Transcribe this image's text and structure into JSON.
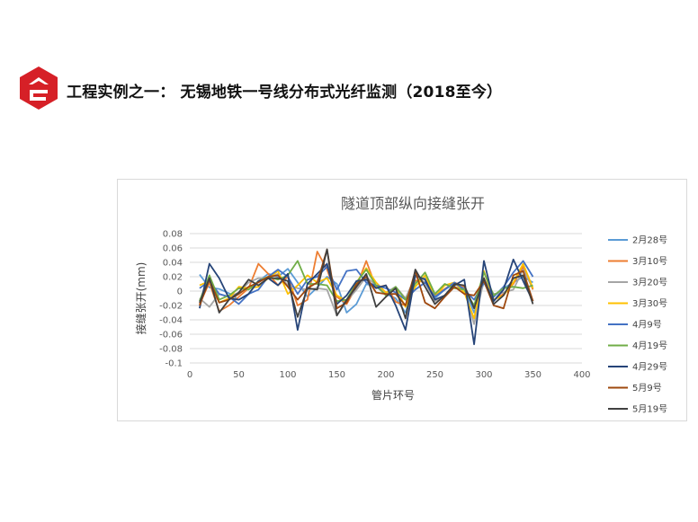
{
  "header": {
    "title": "工程实例之一： 无锡地铁一号线分布式光纤监测（2018至今）",
    "logo": "company-logo",
    "logo_color": "#d62027"
  },
  "chart_data": {
    "type": "line",
    "title": "隧道顶部纵向接缝张开",
    "xlabel": "管片环号",
    "ylabel": "接缝张开(mm)",
    "xlim": [
      0,
      400
    ],
    "ylim": [
      -0.1,
      0.08
    ],
    "xticks": [
      "0",
      "50",
      "100",
      "150",
      "200",
      "250",
      "300",
      "350",
      "400"
    ],
    "yticks": [
      "0.08",
      "0.06",
      "0.04",
      "0.02",
      "0",
      "-0.02",
      "-0.04",
      "-0.06",
      "-0.08",
      "-0.1"
    ],
    "grid": "horizontal",
    "legend_position": "right",
    "x": [
      10,
      20,
      30,
      40,
      50,
      60,
      70,
      80,
      90,
      100,
      110,
      120,
      130,
      140,
      150,
      160,
      170,
      180,
      190,
      200,
      210,
      220,
      230,
      240,
      250,
      260,
      270,
      280,
      290,
      300,
      310,
      320,
      330,
      340,
      350
    ],
    "series": [
      {
        "name": "2月28号",
        "color": "#5b9bd5",
        "values": [
          0.023,
          0.005,
          0.003,
          -0.003,
          -0.012,
          -0.004,
          0.014,
          0.024,
          0.02,
          0.031,
          0.012,
          -0.008,
          0.005,
          0.02,
          0.01,
          -0.03,
          -0.018,
          0.01,
          0.006,
          -0.004,
          -0.01,
          -0.03,
          0.012,
          0.018,
          -0.01,
          0.002,
          0.01,
          0.004,
          -0.03,
          0.012,
          -0.014,
          0.004,
          0.012,
          0.02,
          0.012
        ]
      },
      {
        "name": "3月10号",
        "color": "#ed7d31",
        "values": [
          -0.018,
          0.012,
          -0.028,
          -0.02,
          -0.008,
          0.004,
          0.038,
          0.024,
          0.008,
          0.02,
          -0.02,
          -0.012,
          0.055,
          0.03,
          -0.008,
          -0.018,
          0.006,
          0.042,
          0.005,
          0.008,
          -0.015,
          -0.02,
          0.015,
          0.012,
          -0.006,
          0.003,
          0.012,
          0.006,
          -0.022,
          0.018,
          -0.012,
          -0.004,
          0.01,
          0.034,
          0.002
        ]
      },
      {
        "name": "3月20号",
        "color": "#a5a5a5",
        "values": [
          -0.01,
          -0.022,
          -0.004,
          -0.008,
          -0.002,
          0.012,
          0.018,
          0.018,
          0.024,
          0.008,
          0.004,
          0.002,
          0.004,
          0.002,
          -0.034,
          -0.014,
          0.002,
          0.02,
          0.008,
          -0.002,
          0.006,
          -0.01,
          0.02,
          0.012,
          -0.014,
          -0.008,
          0.006,
          0.002,
          -0.046,
          0.016,
          -0.004,
          -0.002,
          0.002,
          0.03,
          0.004
        ]
      },
      {
        "name": "3月30号",
        "color": "#ffc000",
        "values": [
          0.008,
          0.014,
          -0.016,
          -0.01,
          0.006,
          0.004,
          0.006,
          0.018,
          0.028,
          -0.004,
          0.008,
          0.022,
          0.012,
          0.018,
          -0.006,
          -0.014,
          0.012,
          0.032,
          0.012,
          -0.002,
          0.004,
          -0.022,
          0.006,
          0.022,
          -0.008,
          0.008,
          0.012,
          -0.002,
          -0.038,
          0.028,
          -0.012,
          -0.006,
          0.012,
          0.038,
          0.004
        ]
      },
      {
        "name": "4月9号",
        "color": "#4472c4",
        "values": [
          0.004,
          0.014,
          -0.004,
          -0.008,
          -0.018,
          -0.004,
          0.002,
          0.02,
          0.03,
          0.02,
          -0.004,
          0.016,
          0.02,
          0.034,
          0.002,
          0.028,
          0.03,
          0.012,
          0.008,
          0.004,
          -0.002,
          -0.012,
          0.002,
          0.012,
          -0.008,
          0.002,
          0.012,
          0.002,
          -0.012,
          0.012,
          -0.008,
          0.006,
          0.026,
          0.042,
          0.02
        ]
      },
      {
        "name": "4月19号",
        "color": "#70ad47",
        "values": [
          -0.014,
          0.022,
          -0.012,
          -0.006,
          0.004,
          0.002,
          0.014,
          0.02,
          0.016,
          0.022,
          0.042,
          0.01,
          0.01,
          0.008,
          -0.014,
          -0.012,
          0.012,
          0.03,
          0.008,
          -0.006,
          0.006,
          -0.012,
          0.01,
          0.026,
          -0.004,
          0.01,
          0.004,
          0.002,
          -0.02,
          0.026,
          -0.006,
          0.004,
          0.006,
          0.004,
          0.008
        ]
      },
      {
        "name": "4月29号",
        "color": "#264478",
        "values": [
          -0.024,
          0.038,
          0.018,
          -0.01,
          -0.012,
          -0.004,
          0.014,
          0.018,
          0.008,
          0.024,
          -0.054,
          0.01,
          0.024,
          0.038,
          -0.018,
          -0.006,
          0.014,
          0.016,
          0.004,
          0.008,
          -0.02,
          -0.054,
          0.022,
          0.016,
          -0.012,
          -0.006,
          0.008,
          0.016,
          -0.074,
          0.042,
          -0.014,
          0.002,
          0.044,
          0.014,
          -0.014
        ]
      },
      {
        "name": "5月9号",
        "color": "#9e480e",
        "values": [
          -0.02,
          0.016,
          -0.016,
          -0.012,
          -0.004,
          0.006,
          0.012,
          0.02,
          0.022,
          0.006,
          -0.012,
          0.004,
          0.012,
          0.058,
          -0.024,
          -0.016,
          0.01,
          0.02,
          -0.002,
          -0.004,
          -0.004,
          -0.02,
          0.028,
          -0.016,
          -0.024,
          -0.008,
          0.006,
          -0.004,
          -0.006,
          0.014,
          -0.02,
          -0.024,
          0.022,
          0.028,
          -0.014
        ]
      },
      {
        "name": "5月19号",
        "color": "#404040",
        "values": [
          -0.016,
          0.018,
          -0.03,
          -0.012,
          -0.002,
          0.016,
          0.008,
          0.018,
          0.018,
          0.014,
          -0.036,
          0.004,
          0.002,
          0.058,
          -0.034,
          -0.012,
          0.006,
          0.024,
          -0.022,
          -0.008,
          0.004,
          -0.038,
          0.03,
          0.006,
          -0.018,
          -0.006,
          0.01,
          0.008,
          -0.024,
          0.018,
          -0.018,
          -0.006,
          0.018,
          0.022,
          -0.018
        ]
      }
    ]
  }
}
